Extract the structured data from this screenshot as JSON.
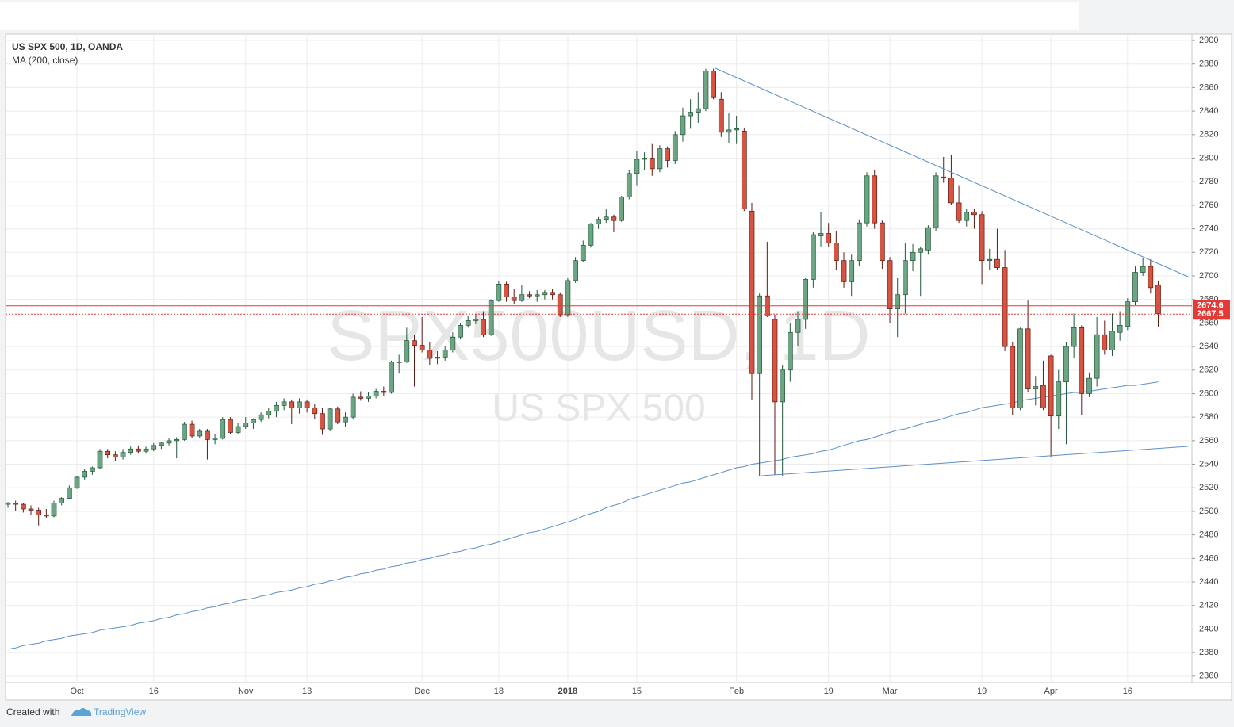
{
  "chart_data": {
    "type": "candlestick",
    "title": "US SPX 500, 1D, OANDA",
    "indicator_label": "MA (200, close)",
    "watermark_symbol": "SPX500USD, 1D",
    "watermark_name": "US SPX 500",
    "ylim": [
      2354.5,
      2905.4
    ],
    "yticks": [
      2360,
      2380,
      2400,
      2420,
      2440,
      2460,
      2480,
      2500,
      2520,
      2540,
      2560,
      2580,
      2600,
      2620,
      2640,
      2660,
      2680,
      2700,
      2720,
      2740,
      2760,
      2780,
      2800,
      2820,
      2840,
      2860,
      2880,
      2900
    ],
    "grid": true,
    "up_color": "#6ba583",
    "down_color": "#d75442",
    "ma_color": "#5b8fc9",
    "categories": [
      null,
      null,
      null,
      null,
      null,
      null,
      null,
      null,
      null,
      "Oct",
      null,
      null,
      null,
      null,
      null,
      null,
      null,
      null,
      null,
      "16",
      null,
      null,
      null,
      null,
      null,
      null,
      null,
      null,
      null,
      null,
      null,
      "Nov",
      null,
      null,
      null,
      null,
      null,
      null,
      null,
      "13",
      null,
      null,
      null,
      null,
      null,
      null,
      null,
      null,
      null,
      null,
      null,
      null,
      null,
      null,
      "Dec",
      null,
      null,
      null,
      null,
      null,
      null,
      null,
      null,
      null,
      "18",
      null,
      null,
      null,
      null,
      null,
      null,
      null,
      null,
      "2018",
      null,
      null,
      null,
      null,
      null,
      null,
      null,
      null,
      "15",
      null,
      null,
      null,
      null,
      null,
      null,
      null,
      null,
      null,
      null,
      null,
      null,
      "Feb",
      null,
      null,
      null,
      null,
      null,
      null,
      null,
      null,
      null,
      null,
      null,
      "19",
      null,
      null,
      null,
      null,
      null,
      null,
      null,
      "Mar",
      null,
      null,
      null,
      null,
      null,
      null,
      null,
      null,
      null,
      null,
      null,
      "19",
      null,
      null,
      null,
      null,
      null,
      null,
      null,
      null,
      "Apr",
      null,
      null,
      null,
      null,
      null,
      null,
      null,
      null,
      null,
      "16",
      null,
      null,
      null,
      null
    ],
    "ohlc": [
      [
        2506,
        2508,
        2503,
        2507
      ],
      [
        2507,
        2509,
        2500,
        2506
      ],
      [
        2506,
        2507,
        2499,
        2502
      ],
      [
        2502,
        2505,
        2497,
        2501
      ],
      [
        2501,
        2503,
        2488,
        2497
      ],
      [
        2497,
        2502,
        2494,
        2496
      ],
      [
        2496,
        2509,
        2495,
        2507
      ],
      [
        2507,
        2512,
        2505,
        2511
      ],
      [
        2511,
        2522,
        2510,
        2520
      ],
      [
        2520,
        2530,
        2519,
        2529
      ],
      [
        2529,
        2536,
        2527,
        2534
      ],
      [
        2534,
        2538,
        2531,
        2537
      ],
      [
        2537,
        2553,
        2536,
        2551
      ],
      [
        2551,
        2553,
        2545,
        2548
      ],
      [
        2548,
        2551,
        2543,
        2546
      ],
      [
        2546,
        2553,
        2544,
        2550
      ],
      [
        2550,
        2555,
        2548,
        2553
      ],
      [
        2553,
        2556,
        2549,
        2551
      ],
      [
        2551,
        2555,
        2549,
        2553
      ],
      [
        2553,
        2558,
        2551,
        2556
      ],
      [
        2556,
        2559,
        2553,
        2558
      ],
      [
        2558,
        2562,
        2556,
        2560
      ],
      [
        2560,
        2563,
        2545,
        2561
      ],
      [
        2561,
        2576,
        2560,
        2574
      ],
      [
        2574,
        2577,
        2562,
        2564
      ],
      [
        2564,
        2570,
        2562,
        2568
      ],
      [
        2568,
        2570,
        2544,
        2561
      ],
      [
        2561,
        2566,
        2557,
        2562
      ],
      [
        2562,
        2580,
        2561,
        2578
      ],
      [
        2578,
        2580,
        2566,
        2567
      ],
      [
        2567,
        2575,
        2566,
        2572
      ],
      [
        2572,
        2580,
        2570,
        2575
      ],
      [
        2575,
        2579,
        2570,
        2578
      ],
      [
        2578,
        2584,
        2576,
        2582
      ],
      [
        2582,
        2588,
        2579,
        2585
      ],
      [
        2585,
        2593,
        2580,
        2590
      ],
      [
        2590,
        2596,
        2586,
        2593
      ],
      [
        2593,
        2595,
        2574,
        2588
      ],
      [
        2588,
        2596,
        2583,
        2593
      ],
      [
        2593,
        2595,
        2584,
        2588
      ],
      [
        2588,
        2591,
        2578,
        2583
      ],
      [
        2583,
        2588,
        2565,
        2570
      ],
      [
        2570,
        2588,
        2568,
        2587
      ],
      [
        2587,
        2589,
        2574,
        2576
      ],
      [
        2576,
        2584,
        2572,
        2580
      ],
      [
        2580,
        2600,
        2578,
        2597
      ],
      [
        2597,
        2602,
        2594,
        2596
      ],
      [
        2596,
        2601,
        2593,
        2598
      ],
      [
        2598,
        2604,
        2596,
        2602
      ],
      [
        2602,
        2606,
        2598,
        2601
      ],
      [
        2601,
        2628,
        2600,
        2627
      ],
      [
        2627,
        2633,
        2617,
        2627
      ],
      [
        2627,
        2656,
        2626,
        2645
      ],
      [
        2645,
        2650,
        2606,
        2641
      ],
      [
        2641,
        2665,
        2635,
        2637
      ],
      [
        2637,
        2644,
        2624,
        2630
      ],
      [
        2630,
        2636,
        2625,
        2631
      ],
      [
        2631,
        2640,
        2628,
        2637
      ],
      [
        2637,
        2652,
        2635,
        2648
      ],
      [
        2648,
        2660,
        2646,
        2658
      ],
      [
        2658,
        2666,
        2656,
        2662
      ],
      [
        2662,
        2668,
        2659,
        2663
      ],
      [
        2663,
        2670,
        2648,
        2650
      ],
      [
        2650,
        2680,
        2649,
        2679
      ],
      [
        2679,
        2696,
        2678,
        2693
      ],
      [
        2693,
        2695,
        2678,
        2682
      ],
      [
        2682,
        2689,
        2676,
        2679
      ],
      [
        2679,
        2692,
        2678,
        2684
      ],
      [
        2684,
        2687,
        2681,
        2683
      ],
      [
        2683,
        2688,
        2678,
        2684
      ],
      [
        2684,
        2688,
        2680,
        2686
      ],
      [
        2686,
        2689,
        2680,
        2684
      ],
      [
        2684,
        2686,
        2665,
        2667
      ],
      [
        2667,
        2698,
        2665,
        2696
      ],
      [
        2696,
        2716,
        2694,
        2713
      ],
      [
        2713,
        2730,
        2712,
        2726
      ],
      [
        2726,
        2745,
        2724,
        2744
      ],
      [
        2744,
        2750,
        2740,
        2748
      ],
      [
        2748,
        2757,
        2745,
        2750
      ],
      [
        2750,
        2752,
        2737,
        2747
      ],
      [
        2747,
        2768,
        2746,
        2767
      ],
      [
        2767,
        2790,
        2765,
        2787
      ],
      [
        2787,
        2806,
        2777,
        2799
      ],
      [
        2799,
        2805,
        2790,
        2800
      ],
      [
        2800,
        2812,
        2785,
        2791
      ],
      [
        2791,
        2811,
        2788,
        2808
      ],
      [
        2808,
        2810,
        2792,
        2798
      ],
      [
        2798,
        2823,
        2795,
        2820
      ],
      [
        2820,
        2843,
        2814,
        2836
      ],
      [
        2836,
        2850,
        2825,
        2839
      ],
      [
        2839,
        2856,
        2830,
        2842
      ],
      [
        2842,
        2876,
        2840,
        2874
      ],
      [
        2874,
        2876,
        2850,
        2852
      ],
      [
        2850,
        2856,
        2818,
        2822
      ],
      [
        2822,
        2838,
        2813,
        2824
      ],
      [
        2824,
        2836,
        2812,
        2825
      ],
      [
        2823,
        2826,
        2755,
        2757
      ],
      [
        2755,
        2762,
        2595,
        2617
      ],
      [
        2617,
        2685,
        2530,
        2683
      ],
      [
        2683,
        2729,
        2665,
        2666
      ],
      [
        2663,
        2667,
        2531,
        2593
      ],
      [
        2593,
        2624,
        2530,
        2620
      ],
      [
        2620,
        2660,
        2610,
        2652
      ],
      [
        2652,
        2670,
        2640,
        2663
      ],
      [
        2663,
        2698,
        2655,
        2697
      ],
      [
        2697,
        2737,
        2690,
        2735
      ],
      [
        2734,
        2754,
        2725,
        2736
      ],
      [
        2736,
        2745,
        2725,
        2728
      ],
      [
        2728,
        2738,
        2705,
        2713
      ],
      [
        2713,
        2720,
        2690,
        2695
      ],
      [
        2695,
        2718,
        2683,
        2713
      ],
      [
        2713,
        2748,
        2708,
        2745
      ],
      [
        2745,
        2788,
        2742,
        2785
      ],
      [
        2785,
        2790,
        2740,
        2745
      ],
      [
        2745,
        2747,
        2706,
        2713
      ],
      [
        2713,
        2716,
        2660,
        2672
      ],
      [
        2672,
        2698,
        2648,
        2684
      ],
      [
        2684,
        2728,
        2668,
        2713
      ],
      [
        2713,
        2727,
        2704,
        2720
      ],
      [
        2720,
        2725,
        2683,
        2723
      ],
      [
        2722,
        2743,
        2718,
        2741
      ],
      [
        2741,
        2788,
        2738,
        2785
      ],
      [
        2784,
        2801,
        2779,
        2783
      ],
      [
        2783,
        2803,
        2760,
        2762
      ],
      [
        2762,
        2777,
        2745,
        2747
      ],
      [
        2747,
        2757,
        2742,
        2754
      ],
      [
        2754,
        2757,
        2740,
        2752
      ],
      [
        2752,
        2755,
        2693,
        2713
      ],
      [
        2713,
        2723,
        2705,
        2714
      ],
      [
        2714,
        2740,
        2705,
        2707
      ],
      [
        2707,
        2722,
        2636,
        2640
      ],
      [
        2640,
        2644,
        2582,
        2588
      ],
      [
        2588,
        2656,
        2586,
        2655
      ],
      [
        2655,
        2679,
        2601,
        2604
      ],
      [
        2604,
        2615,
        2590,
        2606
      ],
      [
        2607,
        2628,
        2586,
        2588
      ],
      [
        2632,
        2633,
        2546,
        2581
      ],
      [
        2581,
        2620,
        2570,
        2610
      ],
      [
        2610,
        2644,
        2557,
        2640
      ],
      [
        2640,
        2668,
        2630,
        2656
      ],
      [
        2656,
        2658,
        2582,
        2600
      ],
      [
        2600,
        2618,
        2597,
        2613
      ],
      [
        2613,
        2665,
        2606,
        2650
      ],
      [
        2650,
        2662,
        2633,
        2637
      ],
      [
        2637,
        2668,
        2632,
        2653
      ],
      [
        2652,
        2670,
        2645,
        2658
      ],
      [
        2657,
        2681,
        2654,
        2678
      ],
      [
        2678,
        2708,
        2675,
        2703
      ],
      [
        2703,
        2715,
        2700,
        2708
      ],
      [
        2708,
        2714,
        2685,
        2690
      ],
      [
        2692,
        2696,
        2657,
        2668
      ]
    ],
    "ma_values": [
      2383,
      2384,
      2386,
      2387,
      2388,
      2390,
      2391,
      2392,
      2394,
      2395,
      2396,
      2397,
      2399,
      2400,
      2401,
      2402,
      2403,
      2405,
      2406,
      2407,
      2409,
      2410,
      2412,
      2413,
      2415,
      2416,
      2418,
      2419,
      2421,
      2422,
      2424,
      2425,
      2426,
      2428,
      2429,
      2431,
      2432,
      2433,
      2435,
      2436,
      2438,
      2439,
      2441,
      2442,
      2444,
      2445,
      2447,
      2448,
      2450,
      2451,
      2453,
      2454,
      2456,
      2457,
      2459,
      2460,
      2462,
      2463,
      2465,
      2466,
      2468,
      2469,
      2471,
      2472,
      2474,
      2476,
      2478,
      2480,
      2482,
      2483,
      2485,
      2487,
      2489,
      2491,
      2493,
      2496,
      2498,
      2500,
      2503,
      2505,
      2507,
      2510,
      2512,
      2514,
      2516,
      2518,
      2520,
      2522,
      2524,
      2525,
      2527,
      2529,
      2531,
      2533,
      2535,
      2537,
      2538,
      2540,
      2541,
      2542,
      2543,
      2544,
      2546,
      2547,
      2548,
      2549,
      2551,
      2552,
      2554,
      2556,
      2558,
      2560,
      2561,
      2563,
      2565,
      2567,
      2569,
      2570,
      2572,
      2574,
      2576,
      2577,
      2579,
      2581,
      2583,
      2584,
      2586,
      2588,
      2589,
      2590,
      2591,
      2592,
      2594,
      2595,
      2596,
      2597,
      2598,
      2599,
      2600,
      2601,
      2601,
      2602,
      2603,
      2604,
      2605,
      2606,
      2607,
      2607,
      2608,
      2609,
      2610
    ],
    "price_lines": [
      {
        "value": 2674.6,
        "color": "#e53935",
        "dashed": false
      },
      {
        "value": 2667.5,
        "color": "#e53935",
        "dashed": true
      }
    ]
  },
  "footer": {
    "text": "Created with",
    "brand": "TradingView"
  }
}
